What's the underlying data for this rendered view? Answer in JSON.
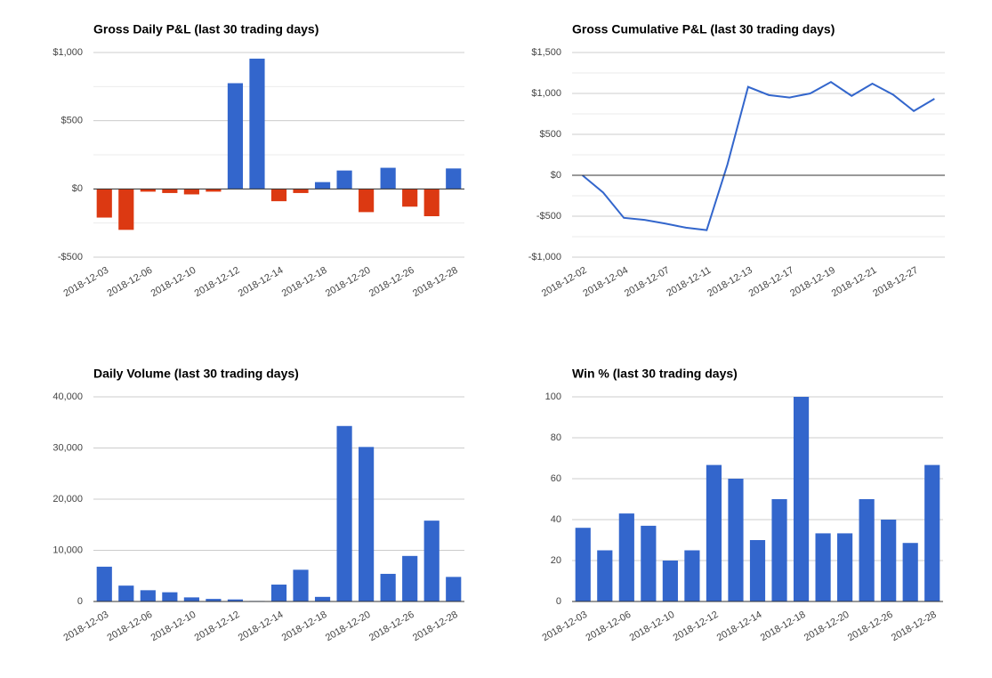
{
  "chart_data": [
    {
      "type": "bar",
      "title": "Gross Daily P&L (last 30 trading days)",
      "categories": [
        "2018-12-03",
        null,
        "2018-12-06",
        null,
        "2018-12-10",
        null,
        "2018-12-12",
        null,
        "2018-12-14",
        null,
        "2018-12-18",
        null,
        "2018-12-20",
        null,
        "2018-12-26",
        null,
        "2018-12-28"
      ],
      "values": [
        -210,
        -300,
        -20,
        -30,
        -40,
        -20,
        775,
        955,
        -90,
        -30,
        50,
        135,
        -170,
        155,
        -130,
        -200,
        150
      ],
      "color": "#3366cc",
      "negative_color": "#dc3912",
      "ylim": [
        -500,
        1000
      ],
      "yticks": [
        {
          "value": -500,
          "label": "-$500"
        },
        {
          "value": 0,
          "label": "$0"
        },
        {
          "value": 500,
          "label": "$500"
        },
        {
          "value": 1000,
          "label": "$1,000"
        }
      ],
      "minor_yticks": [
        -250,
        250,
        750
      ],
      "grid": true
    },
    {
      "type": "line",
      "title": "Gross Cumulative P&L (last 30 trading days)",
      "categories": [
        "2018-12-02",
        null,
        "2018-12-04",
        null,
        "2018-12-07",
        null,
        "2018-12-11",
        null,
        "2018-12-13",
        null,
        "2018-12-17",
        null,
        "2018-12-19",
        null,
        "2018-12-21",
        null,
        "2018-12-27",
        null
      ],
      "values": [
        0,
        -210,
        -520,
        -545,
        -590,
        -640,
        -670,
        130,
        1080,
        980,
        950,
        1000,
        1140,
        970,
        1120,
        985,
        785,
        935
      ],
      "color": "#3366cc",
      "ylim": [
        -1000,
        1500
      ],
      "yticks": [
        {
          "value": -1000,
          "label": "-$1,000"
        },
        {
          "value": -500,
          "label": "-$500"
        },
        {
          "value": 0,
          "label": "$0"
        },
        {
          "value": 500,
          "label": "$500"
        },
        {
          "value": 1000,
          "label": "$1,000"
        },
        {
          "value": 1500,
          "label": "$1,500"
        }
      ],
      "minor_yticks": [
        -750,
        -250,
        250,
        750,
        1250
      ],
      "grid": true
    },
    {
      "type": "bar",
      "title": "Daily Volume (last 30 trading days)",
      "categories": [
        "2018-12-03",
        null,
        "2018-12-06",
        null,
        "2018-12-10",
        null,
        "2018-12-12",
        null,
        "2018-12-14",
        null,
        "2018-12-18",
        null,
        "2018-12-20",
        null,
        "2018-12-26",
        null,
        "2018-12-28"
      ],
      "values": [
        6800,
        3100,
        2200,
        1800,
        800,
        500,
        400,
        100,
        3300,
        6200,
        900,
        34300,
        30200,
        5400,
        8900,
        15800,
        4800
      ],
      "color": "#3366cc",
      "ylim": [
        0,
        40000
      ],
      "yticks": [
        0,
        {
          "value": 10000,
          "label": "10,000"
        },
        {
          "value": 20000,
          "label": "20,000"
        },
        {
          "value": 30000,
          "label": "30,000"
        },
        {
          "value": 40000,
          "label": "40,000"
        }
      ],
      "grid": true
    },
    {
      "type": "bar",
      "title": "Win % (last 30 trading days)",
      "categories": [
        "2018-12-03",
        null,
        "2018-12-06",
        null,
        "2018-12-10",
        null,
        "2018-12-12",
        null,
        "2018-12-14",
        null,
        "2018-12-18",
        null,
        "2018-12-20",
        null,
        "2018-12-26",
        null,
        "2018-12-28"
      ],
      "values": [
        36,
        25,
        43,
        37,
        20,
        25,
        66.7,
        60,
        30,
        50,
        100,
        33.3,
        33.3,
        50,
        40,
        28.6,
        66.7
      ],
      "color": "#3366cc",
      "ylim": [
        0,
        100
      ],
      "yticks": [
        0,
        20,
        40,
        60,
        80,
        100
      ],
      "grid": true
    }
  ]
}
